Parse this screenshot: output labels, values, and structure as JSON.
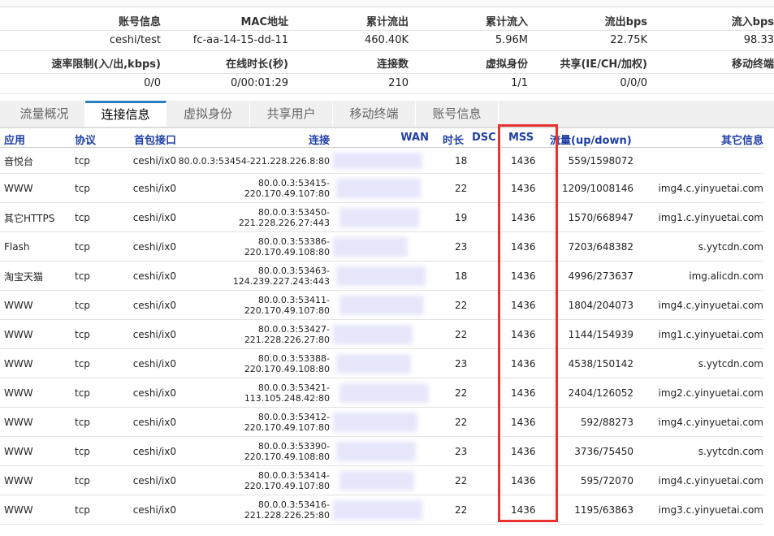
{
  "info": {
    "rows": [
      {
        "labels": [
          "账号信息",
          "MAC地址",
          "累计流出",
          "累计流入",
          "流出bps",
          "流入bps"
        ],
        "values": [
          "ceshi/test",
          "fc-aa-14-15-dd-11",
          "460.40K",
          "5.96M",
          "22.75K",
          "98.33"
        ]
      },
      {
        "labels": [
          "速率限制(入/出,kbps)",
          "在线时长(秒)",
          "连接数",
          "虚拟身份",
          "共享(IE/CH/加权)",
          "移动终端"
        ],
        "values": [
          "0/0",
          "0/00:01:29",
          "210",
          "1/1",
          "0/0/0"
        ]
      }
    ]
  },
  "tabs": [
    "流量概况",
    "连接信息",
    "虚拟身份",
    "共享用户",
    "移动终端",
    "账号信息"
  ],
  "active_tab": 1,
  "table": {
    "columns": [
      "应用",
      "协议",
      "首包接口",
      "连接",
      "WAN",
      "时长",
      "DSC",
      "MSS",
      "流量(up/down)",
      "其它信息"
    ],
    "rows": [
      {
        "app": "音悦台",
        "proto": "tcp",
        "iface": "ceshi/ix0",
        "conn": "80.0.0.3:53454-221.228.226.8:80",
        "dur": "18",
        "mss": "1436",
        "flow": "559/1598072"
      },
      {
        "app": "WWW",
        "proto": "tcp",
        "iface": "ceshi/ix0",
        "conn": "80.0.0.3:53415-220.170.49.107:80",
        "dur": "22",
        "mss": "1436",
        "flow": "1209/1008146",
        "other": "img4.c.yinyuetai.com"
      },
      {
        "app": "其它HTTPS",
        "proto": "tcp",
        "iface": "ceshi/ix0",
        "conn": "80.0.0.3:53450-221.228.226.27:443",
        "dur": "19",
        "mss": "1436",
        "flow": "1570/668947",
        "other": "img1.c.yinyuetai.com"
      },
      {
        "app": "Flash",
        "proto": "tcp",
        "iface": "ceshi/ix0",
        "conn": "80.0.0.3:53386-220.170.49.108:80",
        "dur": "23",
        "mss": "1436",
        "flow": "7203/648382",
        "other": "s.yytcdn.com"
      },
      {
        "app": "淘宝天猫",
        "proto": "tcp",
        "iface": "ceshi/ix0",
        "conn": "80.0.0.3:53463-124.239.227.243:443",
        "dur": "18",
        "mss": "1436",
        "flow": "4996/273637",
        "other": "img.alicdn.com"
      },
      {
        "app": "WWW",
        "proto": "tcp",
        "iface": "ceshi/ix0",
        "conn": "80.0.0.3:53411-220.170.49.107:80",
        "dur": "22",
        "mss": "1436",
        "flow": "1804/204073",
        "other": "img4.c.yinyuetai.com"
      },
      {
        "app": "WWW",
        "proto": "tcp",
        "iface": "ceshi/ix0",
        "conn": "80.0.0.3:53427-221.228.226.27:80",
        "dur": "22",
        "mss": "1436",
        "flow": "1144/154939",
        "other": "img1.c.yinyuetai.com"
      },
      {
        "app": "WWW",
        "proto": "tcp",
        "iface": "ceshi/ix0",
        "conn": "80.0.0.3:53388-220.170.49.108:80",
        "dur": "23",
        "mss": "1436",
        "flow": "4538/150142",
        "other": "s.yytcdn.com"
      },
      {
        "app": "WWW",
        "proto": "tcp",
        "iface": "ceshi/ix0",
        "conn": "80.0.0.3:53421-113.105.248.42:80",
        "dur": "22",
        "mss": "1436",
        "flow": "2404/126052",
        "other": "img2.c.yinyuetai.com"
      },
      {
        "app": "WWW",
        "proto": "tcp",
        "iface": "ceshi/ix0",
        "conn": "80.0.0.3:53412-220.170.49.107:80",
        "dur": "22",
        "mss": "1436",
        "flow": "592/88273",
        "other": "img4.c.yinyuetai.com"
      },
      {
        "app": "WWW",
        "proto": "tcp",
        "iface": "ceshi/ix0",
        "conn": "80.0.0.3:53390-220.170.49.108:80",
        "dur": "23",
        "mss": "1436",
        "flow": "3736/75450",
        "other": "s.yytcdn.com"
      },
      {
        "app": "WWW",
        "proto": "tcp",
        "iface": "ceshi/ix0",
        "conn": "80.0.0.3:53414-220.170.49.107:80",
        "dur": "22",
        "mss": "1436",
        "flow": "595/72070",
        "other": "img4.c.yinyuetai.com"
      },
      {
        "app": "WWW",
        "proto": "tcp",
        "iface": "ceshi/ix0",
        "conn": "80.0.0.3:53416-221.228.226.25:80",
        "dur": "22",
        "mss": "1436",
        "flow": "1195/63863",
        "other": "img3.c.yinyuetai.com"
      }
    ]
  }
}
